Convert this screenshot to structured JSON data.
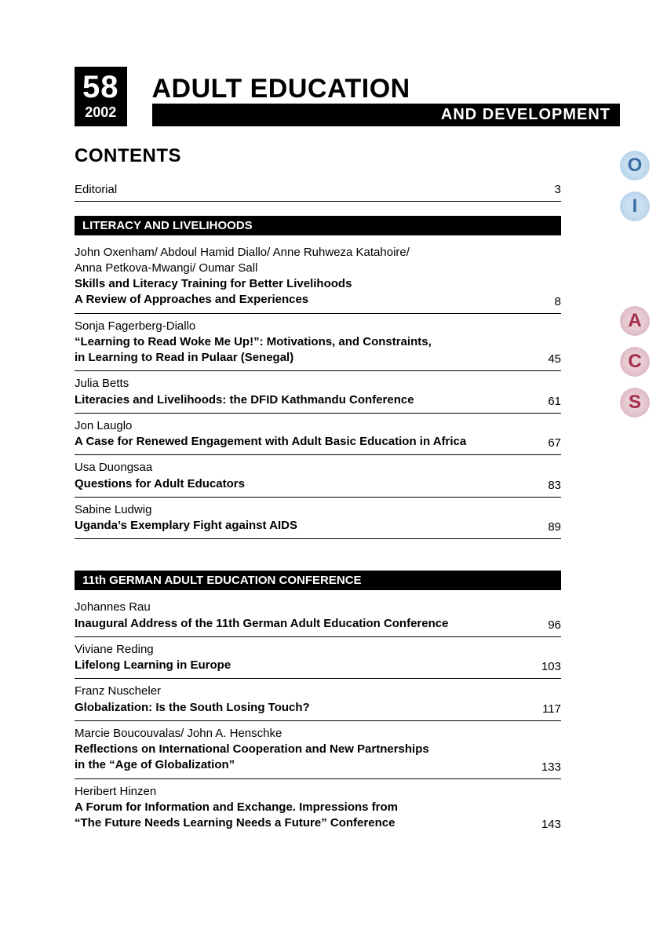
{
  "issue": {
    "number": "58",
    "year": "2002"
  },
  "title": {
    "main": "ADULT EDUCATION",
    "sub": "AND DEVELOPMENT"
  },
  "contents_heading": "CONTENTS",
  "editorial": {
    "label": "Editorial",
    "page": "3"
  },
  "sections": [
    {
      "heading": "LITERACY AND LIVELIHOODS",
      "entries": [
        {
          "authors": "John Oxenham/ Abdoul Hamid Diallo/ Anne Ruhweza Katahoire/\nAnna Petkova-Mwangi/ Oumar Sall",
          "title": "Skills and Literacy Training for Better Livelihoods\nA Review of Approaches and Experiences",
          "page": "8"
        },
        {
          "authors": "Sonja Fagerberg-Diallo",
          "title": "“Learning to Read Woke Me Up!”: Motivations, and Constraints,\nin Learning to Read in Pulaar (Senegal)",
          "page": "45"
        },
        {
          "authors": "Julia Betts",
          "title": "Literacies and Livelihoods: the DFID Kathmandu Conference",
          "page": "61"
        },
        {
          "authors": "Jon Lauglo",
          "title": "A Case for Renewed Engagement with Adult Basic Education in Africa",
          "page": "67"
        },
        {
          "authors": "Usa Duongsaa",
          "title": "Questions for Adult Educators",
          "page": "83"
        },
        {
          "authors": "Sabine Ludwig",
          "title": "Uganda’s Exemplary Fight against AIDS",
          "page": "89"
        }
      ]
    },
    {
      "heading": "11th GERMAN ADULT EDUCATION CONFERENCE",
      "entries": [
        {
          "authors": "Johannes Rau",
          "title": "Inaugural Address of the 11th German Adult Education Conference",
          "page": "96"
        },
        {
          "authors": "Viviane Reding",
          "title": "Lifelong Learning in Europe",
          "page": "103"
        },
        {
          "authors": "Franz Nuscheler",
          "title": "Globalization: Is the South Losing Touch?",
          "page": "117"
        },
        {
          "authors": "Marcie Boucouvalas/ John A. Henschke",
          "title": "Reflections on International Cooperation and New Partnerships\nin the “Age of Globalization”",
          "page": "133"
        },
        {
          "authors": "Heribert Hinzen",
          "title": "A Forum for Information and Exchange. Impressions from\n“The Future Needs Learning Needs a Future” Conference",
          "page": "143"
        }
      ]
    }
  ],
  "side_letters": {
    "group1": [
      "O",
      "I"
    ],
    "group2": [
      "A",
      "C",
      "S"
    ]
  },
  "colors": {
    "black": "#000000",
    "white": "#ffffff",
    "badge_blue_bg": "#c9dff1",
    "badge_blue_fg": "#3a6ea5",
    "badge_red_bg": "#e8ccd4",
    "badge_red_fg": "#a32d4a"
  }
}
